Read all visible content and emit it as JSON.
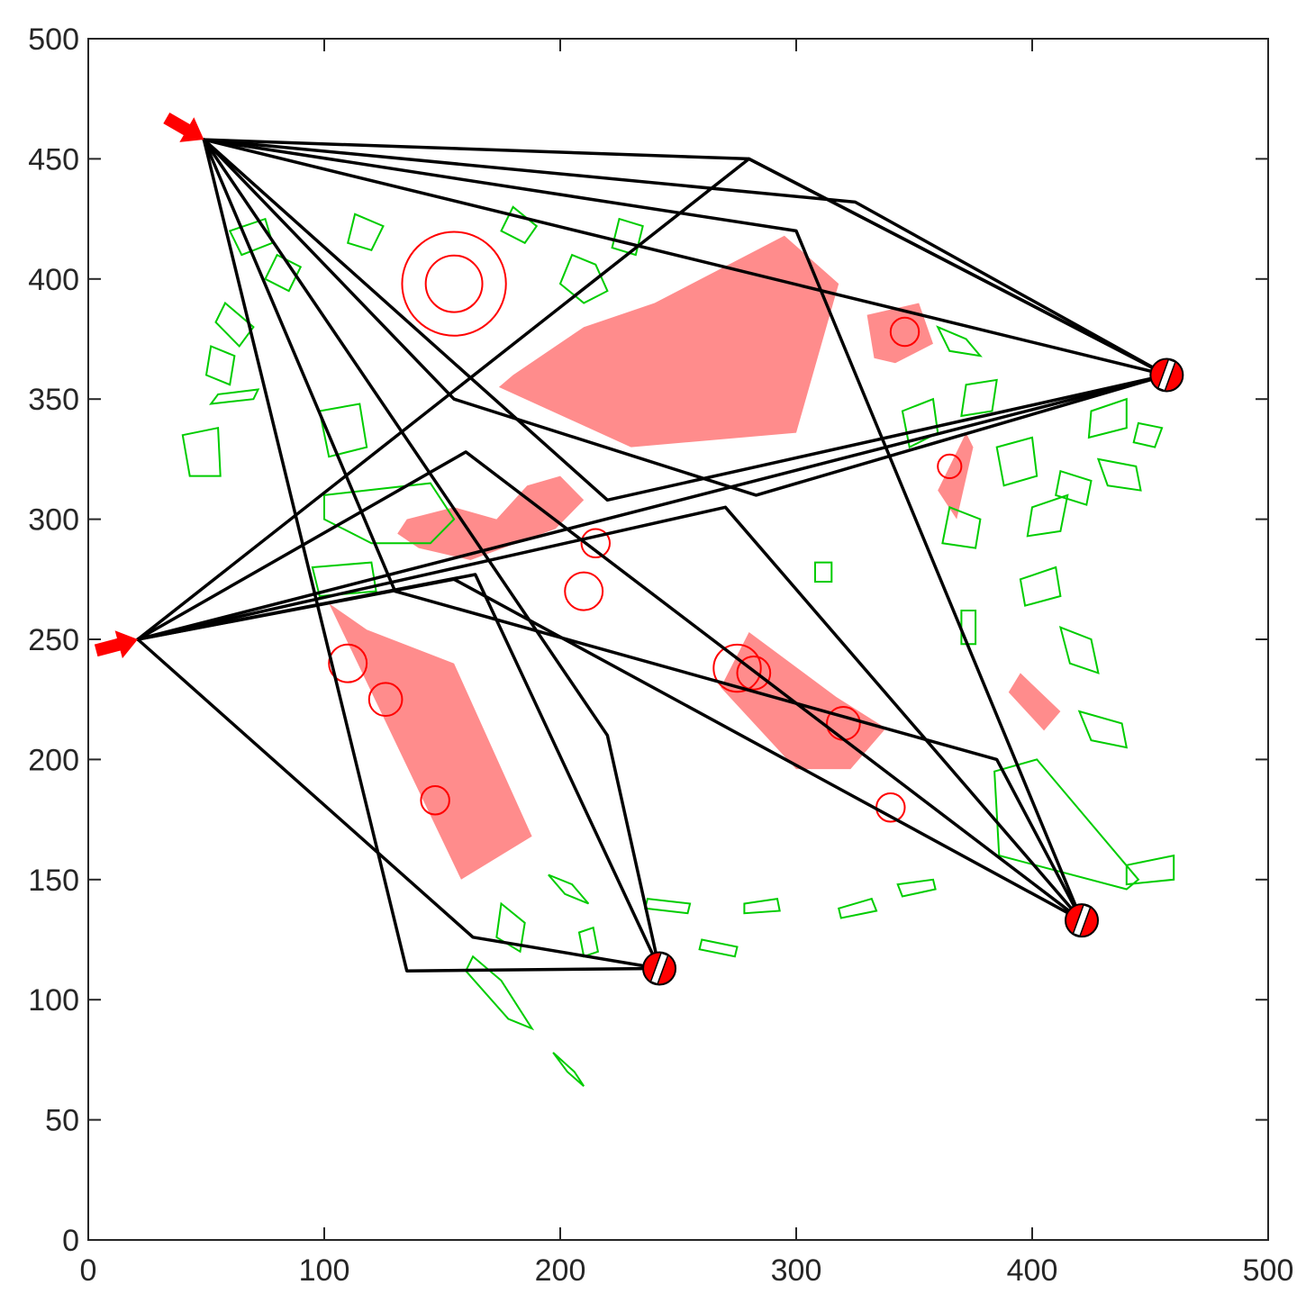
{
  "chart_data": {
    "type": "scatter",
    "title": "",
    "xlabel": "",
    "ylabel": "",
    "xlim": [
      0,
      500
    ],
    "ylim": [
      0,
      500
    ],
    "xticks": [
      0,
      100,
      200,
      300,
      400,
      500
    ],
    "yticks": [
      0,
      50,
      100,
      150,
      200,
      250,
      300,
      350,
      400,
      450,
      500
    ],
    "grid": false,
    "colors": {
      "axis": "#262626",
      "path": "#000000",
      "danger": "#ff0000",
      "danger_fill": "#ff0000",
      "safe": "#00cc00",
      "start": "#ff0000",
      "target_fill": "#ff0000"
    },
    "starts": [
      {
        "name": "start-1",
        "x": 49,
        "y": 458,
        "icon": "arrow-icon"
      },
      {
        "name": "start-2",
        "x": 21,
        "y": 250,
        "icon": "arrow-icon"
      }
    ],
    "targets": [
      {
        "name": "target-1",
        "x": 457,
        "y": 360
      },
      {
        "name": "target-2",
        "x": 242,
        "y": 113
      },
      {
        "name": "target-3",
        "x": 421,
        "y": 133
      }
    ],
    "paths": [
      {
        "points": [
          [
            49,
            458
          ],
          [
            457,
            360
          ]
        ]
      },
      {
        "points": [
          [
            49,
            458
          ],
          [
            325,
            432
          ],
          [
            457,
            360
          ]
        ]
      },
      {
        "points": [
          [
            49,
            458
          ],
          [
            280,
            450
          ],
          [
            457,
            360
          ]
        ]
      },
      {
        "points": [
          [
            49,
            458
          ],
          [
            155,
            350
          ],
          [
            283,
            310
          ],
          [
            457,
            360
          ]
        ]
      },
      {
        "points": [
          [
            49,
            458
          ],
          [
            220,
            308
          ],
          [
            457,
            360
          ]
        ]
      },
      {
        "points": [
          [
            49,
            458
          ],
          [
            135,
            112
          ],
          [
            242,
            113
          ]
        ]
      },
      {
        "points": [
          [
            49,
            458
          ],
          [
            220,
            210
          ],
          [
            242,
            113
          ]
        ]
      },
      {
        "points": [
          [
            49,
            458
          ],
          [
            130,
            270
          ],
          [
            385,
            200
          ],
          [
            421,
            133
          ]
        ]
      },
      {
        "points": [
          [
            49,
            458
          ],
          [
            300,
            420
          ],
          [
            421,
            133
          ]
        ]
      },
      {
        "points": [
          [
            21,
            250
          ],
          [
            457,
            360
          ]
        ]
      },
      {
        "points": [
          [
            21,
            250
          ],
          [
            280,
            450
          ],
          [
            457,
            360
          ]
        ]
      },
      {
        "points": [
          [
            21,
            250
          ],
          [
            160,
            328
          ],
          [
            421,
            133
          ]
        ]
      },
      {
        "points": [
          [
            21,
            250
          ],
          [
            270,
            305
          ],
          [
            421,
            133
          ]
        ]
      },
      {
        "points": [
          [
            21,
            250
          ],
          [
            164,
            277
          ],
          [
            242,
            113
          ]
        ]
      },
      {
        "points": [
          [
            21,
            250
          ],
          [
            163,
            126
          ],
          [
            242,
            113
          ]
        ]
      },
      {
        "points": [
          [
            21,
            250
          ],
          [
            155,
            275
          ],
          [
            421,
            133
          ]
        ]
      }
    ],
    "danger_zones": [
      {
        "points": [
          [
            118,
            254
          ],
          [
            155,
            240
          ],
          [
            188,
            168
          ],
          [
            158,
            150
          ],
          [
            102,
            265
          ]
        ]
      },
      {
        "points": [
          [
            173,
            300
          ],
          [
            186,
            314
          ],
          [
            200,
            318
          ],
          [
            210,
            308
          ],
          [
            198,
            296
          ],
          [
            162,
            283
          ],
          [
            140,
            288
          ],
          [
            131,
            294
          ],
          [
            135,
            300
          ],
          [
            155,
            305
          ]
        ]
      },
      {
        "points": [
          [
            174,
            355
          ],
          [
            230,
            330
          ],
          [
            300,
            336
          ],
          [
            318,
            398
          ],
          [
            295,
            418
          ],
          [
            240,
            390
          ],
          [
            210,
            380
          ],
          [
            180,
            360
          ]
        ]
      },
      {
        "points": [
          [
            280,
            253
          ],
          [
            317,
            226
          ],
          [
            338,
            213
          ],
          [
            323,
            196
          ],
          [
            300,
            196
          ],
          [
            268,
            230
          ]
        ]
      },
      {
        "points": [
          [
            330,
            385
          ],
          [
            352,
            390
          ],
          [
            358,
            373
          ],
          [
            342,
            365
          ],
          [
            333,
            367
          ]
        ]
      },
      {
        "points": [
          [
            375,
            330
          ],
          [
            368,
            300
          ],
          [
            360,
            312
          ],
          [
            372,
            336
          ]
        ]
      },
      {
        "points": [
          [
            412,
            220
          ],
          [
            405,
            212
          ],
          [
            390,
            228
          ],
          [
            395,
            236
          ]
        ]
      }
    ],
    "danger_blobs": [
      {
        "cx": 155,
        "cy": 398,
        "r": 22
      },
      {
        "cx": 155,
        "cy": 398,
        "r": 12
      },
      {
        "cx": 282,
        "cy": 236,
        "r": 7
      },
      {
        "cx": 346,
        "cy": 378,
        "r": 6
      },
      {
        "cx": 365,
        "cy": 322,
        "r": 5
      },
      {
        "cx": 110,
        "cy": 240,
        "r": 8
      },
      {
        "cx": 126,
        "cy": 225,
        "r": 7
      },
      {
        "cx": 147,
        "cy": 183,
        "r": 6
      },
      {
        "cx": 275,
        "cy": 238,
        "r": 10
      },
      {
        "cx": 320,
        "cy": 215,
        "r": 7
      },
      {
        "cx": 340,
        "cy": 180,
        "r": 6
      },
      {
        "cx": 210,
        "cy": 270,
        "r": 8
      },
      {
        "cx": 215,
        "cy": 290,
        "r": 6
      }
    ],
    "safe_objects": [
      {
        "points": [
          [
            110,
            415
          ],
          [
            120,
            412
          ],
          [
            125,
            422
          ],
          [
            113,
            427
          ]
        ]
      },
      {
        "points": [
          [
            60,
            420
          ],
          [
            75,
            425
          ],
          [
            78,
            415
          ],
          [
            65,
            410
          ]
        ]
      },
      {
        "points": [
          [
            75,
            400
          ],
          [
            85,
            395
          ],
          [
            90,
            405
          ],
          [
            80,
            410
          ]
        ]
      },
      {
        "points": [
          [
            58,
            390
          ],
          [
            70,
            380
          ],
          [
            64,
            372
          ],
          [
            54,
            382
          ]
        ]
      },
      {
        "points": [
          [
            50,
            360
          ],
          [
            60,
            356
          ],
          [
            62,
            368
          ],
          [
            52,
            372
          ]
        ]
      },
      {
        "points": [
          [
            52,
            348
          ],
          [
            70,
            350
          ],
          [
            72,
            354
          ],
          [
            55,
            352
          ]
        ]
      },
      {
        "points": [
          [
            40,
            335
          ],
          [
            55,
            338
          ],
          [
            56,
            318
          ],
          [
            43,
            318
          ]
        ]
      },
      {
        "points": [
          [
            98,
            345
          ],
          [
            115,
            348
          ],
          [
            118,
            330
          ],
          [
            102,
            326
          ]
        ]
      },
      {
        "points": [
          [
            100,
            310
          ],
          [
            145,
            315
          ],
          [
            155,
            300
          ],
          [
            145,
            290
          ],
          [
            120,
            290
          ],
          [
            100,
            300
          ]
        ]
      },
      {
        "points": [
          [
            95,
            280
          ],
          [
            120,
            282
          ],
          [
            122,
            270
          ],
          [
            98,
            268
          ]
        ]
      },
      {
        "points": [
          [
            205,
            410
          ],
          [
            215,
            406
          ],
          [
            220,
            395
          ],
          [
            210,
            390
          ],
          [
            200,
            398
          ]
        ]
      },
      {
        "points": [
          [
            225,
            425
          ],
          [
            235,
            422
          ],
          [
            232,
            410
          ],
          [
            222,
            413
          ]
        ]
      },
      {
        "points": [
          [
            180,
            430
          ],
          [
            190,
            422
          ],
          [
            185,
            415
          ],
          [
            175,
            420
          ]
        ]
      },
      {
        "points": [
          [
            360,
            380
          ],
          [
            372,
            375
          ],
          [
            378,
            368
          ],
          [
            365,
            370
          ]
        ]
      },
      {
        "points": [
          [
            372,
            356
          ],
          [
            385,
            358
          ],
          [
            383,
            345
          ],
          [
            370,
            343
          ]
        ]
      },
      {
        "points": [
          [
            345,
            345
          ],
          [
            358,
            350
          ],
          [
            360,
            336
          ],
          [
            348,
            330
          ]
        ]
      },
      {
        "points": [
          [
            385,
            330
          ],
          [
            400,
            334
          ],
          [
            402,
            318
          ],
          [
            388,
            314
          ]
        ]
      },
      {
        "points": [
          [
            400,
            305
          ],
          [
            415,
            310
          ],
          [
            412,
            295
          ],
          [
            398,
            293
          ]
        ]
      },
      {
        "points": [
          [
            365,
            305
          ],
          [
            378,
            300
          ],
          [
            376,
            288
          ],
          [
            362,
            290
          ]
        ]
      },
      {
        "points": [
          [
            395,
            275
          ],
          [
            410,
            280
          ],
          [
            412,
            268
          ],
          [
            397,
            264
          ]
        ]
      },
      {
        "points": [
          [
            425,
            345
          ],
          [
            440,
            350
          ],
          [
            440,
            338
          ],
          [
            424,
            334
          ]
        ]
      },
      {
        "points": [
          [
            445,
            340
          ],
          [
            455,
            338
          ],
          [
            452,
            330
          ],
          [
            443,
            332
          ]
        ]
      },
      {
        "points": [
          [
            428,
            325
          ],
          [
            444,
            322
          ],
          [
            446,
            312
          ],
          [
            432,
            314
          ]
        ]
      },
      {
        "points": [
          [
            412,
            320
          ],
          [
            425,
            316
          ],
          [
            423,
            306
          ],
          [
            410,
            310
          ]
        ]
      },
      {
        "points": [
          [
            412,
            255
          ],
          [
            425,
            250
          ],
          [
            428,
            236
          ],
          [
            416,
            240
          ]
        ]
      },
      {
        "points": [
          [
            420,
            220
          ],
          [
            438,
            215
          ],
          [
            440,
            205
          ],
          [
            425,
            208
          ]
        ]
      },
      {
        "points": [
          [
            370,
            262
          ],
          [
            376,
            262
          ],
          [
            376,
            248
          ],
          [
            370,
            248
          ]
        ]
      },
      {
        "points": [
          [
            308,
            282
          ],
          [
            315,
            282
          ],
          [
            315,
            274
          ],
          [
            308,
            274
          ]
        ]
      },
      {
        "points": [
          [
            175,
            140
          ],
          [
            185,
            132
          ],
          [
            183,
            120
          ],
          [
            173,
            126
          ]
        ]
      },
      {
        "points": [
          [
            195,
            152
          ],
          [
            205,
            148
          ],
          [
            212,
            140
          ],
          [
            202,
            144
          ]
        ]
      },
      {
        "points": [
          [
            208,
            128
          ],
          [
            214,
            130
          ],
          [
            216,
            120
          ],
          [
            210,
            118
          ]
        ]
      },
      {
        "points": [
          [
            163,
            118
          ],
          [
            175,
            108
          ],
          [
            188,
            88
          ],
          [
            178,
            92
          ],
          [
            160,
            112
          ]
        ]
      },
      {
        "points": [
          [
            197,
            78
          ],
          [
            206,
            70
          ],
          [
            210,
            64
          ],
          [
            203,
            70
          ]
        ]
      },
      {
        "points": [
          [
            237,
            142
          ],
          [
            255,
            140
          ],
          [
            254,
            136
          ],
          [
            236,
            138
          ]
        ]
      },
      {
        "points": [
          [
            260,
            125
          ],
          [
            275,
            122
          ],
          [
            274,
            118
          ],
          [
            259,
            121
          ]
        ]
      },
      {
        "points": [
          [
            278,
            140
          ],
          [
            292,
            142
          ],
          [
            293,
            137
          ],
          [
            278,
            136
          ]
        ]
      },
      {
        "points": [
          [
            318,
            138
          ],
          [
            332,
            142
          ],
          [
            334,
            137
          ],
          [
            319,
            134
          ]
        ]
      },
      {
        "points": [
          [
            343,
            148
          ],
          [
            358,
            150
          ],
          [
            359,
            146
          ],
          [
            345,
            143
          ]
        ]
      },
      {
        "points": [
          [
            384,
            195
          ],
          [
            402,
            200
          ],
          [
            445,
            150
          ],
          [
            440,
            146
          ],
          [
            386,
            160
          ]
        ]
      },
      {
        "points": [
          [
            440,
            156
          ],
          [
            460,
            160
          ],
          [
            460,
            150
          ],
          [
            440,
            148
          ]
        ]
      }
    ]
  }
}
